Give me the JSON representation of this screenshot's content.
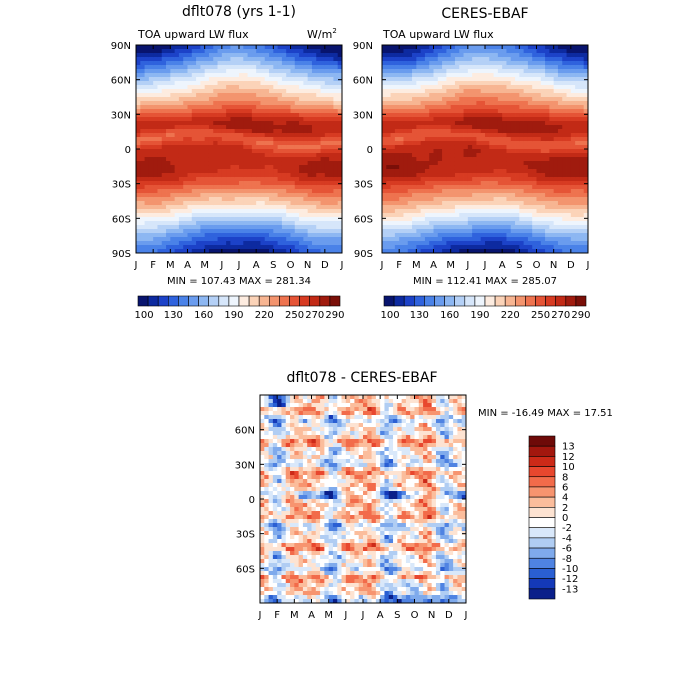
{
  "chart_data": [
    {
      "type": "heatmap",
      "title": "dflt078 (yrs 1-1)",
      "subtitle": "TOA upward LW flux",
      "units": "W/m²",
      "stats": "MIN = 107.43 MAX = 281.34",
      "x_ticks": [
        "J",
        "F",
        "M",
        "A",
        "M",
        "J",
        "J",
        "A",
        "S",
        "O",
        "N",
        "D",
        "J"
      ],
      "y_ticks": [
        "90N",
        "60N",
        "30N",
        "0",
        "30S",
        "60S",
        "90S"
      ],
      "y_range": [
        -90,
        90
      ],
      "min": 107.43,
      "max": 281.34,
      "colorbar": {
        "levels": [
          100,
          110,
          120,
          130,
          140,
          150,
          160,
          170,
          180,
          190,
          200,
          210,
          220,
          230,
          240,
          250,
          260,
          270,
          280,
          290
        ],
        "tick_labels": [
          "100",
          "130",
          "160",
          "190",
          "220",
          "250",
          "270",
          "290"
        ],
        "colors": [
          "#08146e",
          "#0d2aa0",
          "#1c42c8",
          "#2f62dd",
          "#4a82e8",
          "#6a9cee",
          "#8db7f2",
          "#b4d0f6",
          "#d6e6fa",
          "#eef5fd",
          "#fdece0",
          "#fbd3b8",
          "#f7b592",
          "#f3946e",
          "#ee734f",
          "#e55436",
          "#d73b22",
          "#c22a16",
          "#a01b0e",
          "#7a0f08"
        ]
      },
      "grid": false
    },
    {
      "type": "heatmap",
      "title": "CERES-EBAF",
      "subtitle": "TOA upward LW flux",
      "stats": "MIN = 112.41 MAX = 285.07",
      "x_ticks": [
        "J",
        "F",
        "M",
        "A",
        "M",
        "J",
        "J",
        "A",
        "S",
        "O",
        "N",
        "D",
        "J"
      ],
      "y_ticks": [
        "90N",
        "60N",
        "30N",
        "0",
        "30S",
        "60S",
        "90S"
      ],
      "y_range": [
        -90,
        90
      ],
      "min": 112.41,
      "max": 285.07,
      "colorbar": {
        "levels": [
          100,
          110,
          120,
          130,
          140,
          150,
          160,
          170,
          180,
          190,
          200,
          210,
          220,
          230,
          240,
          250,
          260,
          270,
          280,
          290
        ],
        "tick_labels": [
          "100",
          "130",
          "160",
          "190",
          "220",
          "250",
          "270",
          "290"
        ]
      },
      "grid": false
    },
    {
      "type": "heatmap",
      "title": "dflt078 - CERES-EBAF",
      "stats": "MIN = -16.49 MAX =  17.51",
      "x_ticks": [
        "J",
        "F",
        "M",
        "A",
        "M",
        "J",
        "J",
        "A",
        "S",
        "O",
        "N",
        "D",
        "J"
      ],
      "y_ticks": [
        "60N",
        "30N",
        "0",
        "30S",
        "60S"
      ],
      "y_range": [
        -90,
        90
      ],
      "min": -16.49,
      "max": 17.51,
      "colorbar": {
        "tick_labels": [
          "13",
          "12",
          "10",
          "8",
          "6",
          "4",
          "2",
          "0",
          "-2",
          "-4",
          "-6",
          "-8",
          "-10",
          "-12",
          "-13"
        ],
        "colors": [
          "#6e0a08",
          "#a3170e",
          "#cc2a18",
          "#e8472e",
          "#f26b4a",
          "#f7946f",
          "#fbbd9c",
          "#fde3d2",
          "#ffffff",
          "#d9e8fa",
          "#b0cdf3",
          "#7faaec",
          "#4f83e2",
          "#2a5fd3",
          "#1439b8",
          "#0a1f8a"
        ]
      },
      "grid": false
    }
  ]
}
